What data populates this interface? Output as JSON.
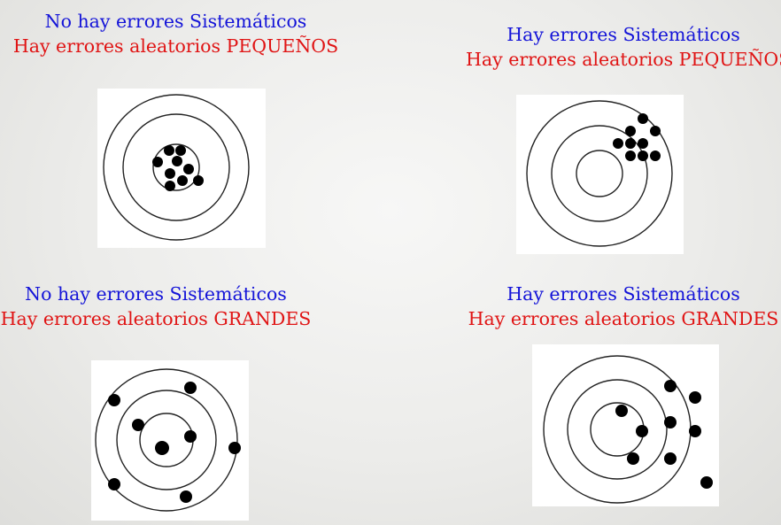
{
  "panels": [
    {
      "line1": "No hay errores Sistemáticos",
      "line2": "Hay errores  aleatorios PEQUEÑOS",
      "icon": "target-tight-centered"
    },
    {
      "line1": "Hay errores Sistemáticos",
      "line2": "Hay errores  aleatorios PEQUEÑOS",
      "icon": "target-tight-offset"
    },
    {
      "line1": "No hay errores Sistemáticos",
      "line2": "Hay errores  aleatorios GRANDES",
      "icon": "target-scattered-centered"
    },
    {
      "line1": "Hay errores Sistemáticos",
      "line2": "Hay errores  aleatorios GRANDES",
      "icon": "target-scattered-offset"
    }
  ],
  "colors": {
    "systematic_line": "#1414d8",
    "random_line": "#e01414",
    "shots": "#000000"
  }
}
